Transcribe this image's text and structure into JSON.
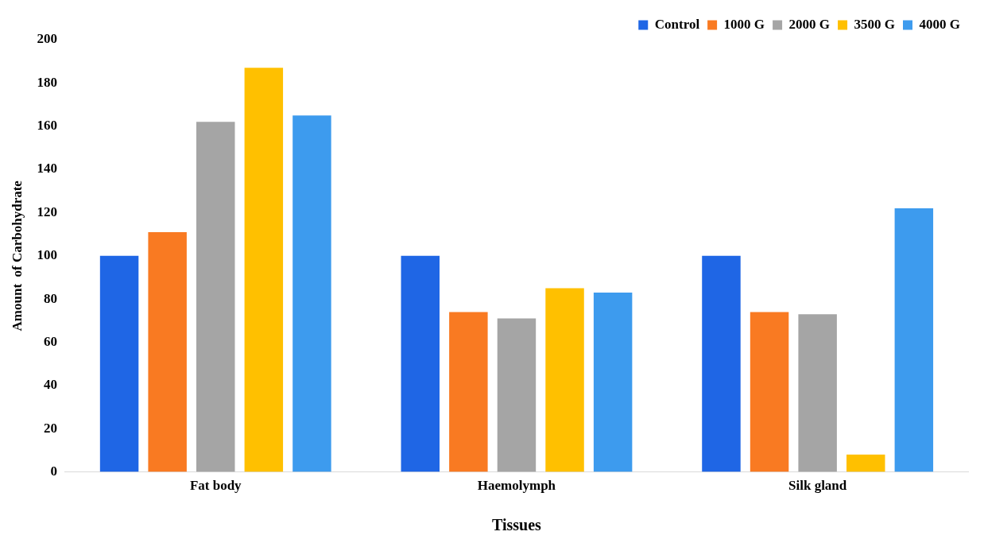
{
  "chart_data": {
    "type": "bar",
    "xlabel": "Tissues",
    "ylabel": "Amount  of Carbohydrate",
    "categories": [
      "Fat body",
      "Haemolymph",
      "Silk gland"
    ],
    "series": [
      {
        "name": "Control",
        "color": "#1f66e5",
        "values": [
          100,
          100,
          100
        ]
      },
      {
        "name": "1000 G",
        "color": "#f97a22",
        "values": [
          111,
          74,
          74
        ]
      },
      {
        "name": "2000 G",
        "color": "#a5a5a5",
        "values": [
          162,
          71,
          73
        ]
      },
      {
        "name": "3500 G",
        "color": "#ffc000",
        "values": [
          187,
          85,
          8
        ]
      },
      {
        "name": "4000 G",
        "color": "#3d9bee",
        "values": [
          165,
          83,
          122
        ]
      }
    ],
    "ylim": [
      0,
      200
    ],
    "yticks": [
      0,
      20,
      40,
      60,
      80,
      100,
      120,
      140,
      160,
      180,
      200
    ],
    "grid": false,
    "legend": "top right"
  }
}
